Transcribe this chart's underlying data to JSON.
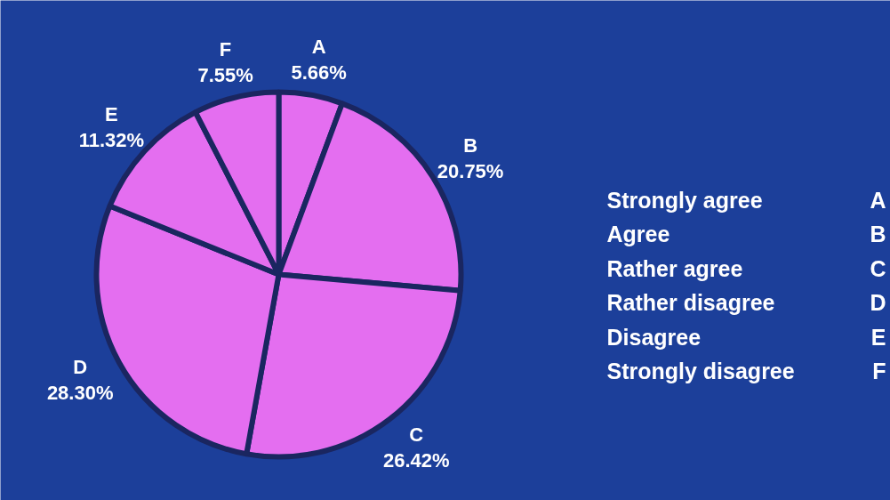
{
  "chart_data": {
    "type": "pie",
    "categories": [
      "A",
      "B",
      "C",
      "D",
      "E",
      "F"
    ],
    "values": [
      5.66,
      20.75,
      26.42,
      28.3,
      11.32,
      7.55
    ],
    "colors": [
      "#e46ef0",
      "#e46ef0",
      "#e46ef0",
      "#e46ef0",
      "#e46ef0",
      "#e46ef0"
    ],
    "value_labels": [
      "5.66%",
      "20.75%",
      "26.42%",
      "28.30%",
      "11.32%",
      "7.55%"
    ],
    "annotations": [
      "Strongly agree",
      "A",
      "Agree",
      "B",
      "Rather agree",
      "C",
      "Rather disagree",
      "D",
      "Disagree",
      "E",
      "Strongly disagree",
      "F"
    ]
  }
}
